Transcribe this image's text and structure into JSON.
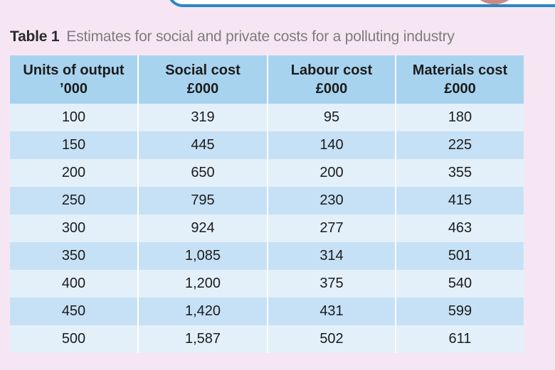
{
  "caption": {
    "label": "Table 1",
    "title": "Estimates for social and private costs for a polluting industry"
  },
  "columns": [
    {
      "line1": "Units of output",
      "line2": "’000"
    },
    {
      "line1": "Social cost",
      "line2": "£000"
    },
    {
      "line1": "Labour cost",
      "line2": "£000"
    },
    {
      "line1": "Materials cost",
      "line2": "£000"
    }
  ],
  "rows": [
    [
      "100",
      "319",
      "95",
      "180"
    ],
    [
      "150",
      "445",
      "140",
      "225"
    ],
    [
      "200",
      "650",
      "200",
      "355"
    ],
    [
      "250",
      "795",
      "230",
      "415"
    ],
    [
      "300",
      "924",
      "277",
      "463"
    ],
    [
      "350",
      "1,085",
      "314",
      "501"
    ],
    [
      "400",
      "1,200",
      "375",
      "540"
    ],
    [
      "450",
      "1,420",
      "431",
      "599"
    ],
    [
      "500",
      "1,587",
      "502",
      "611"
    ]
  ],
  "colors": {
    "background": "#f6e6f3",
    "header": "#a8d3ef",
    "row_light": "#e3f0fa",
    "row_dark": "#c6e1f5",
    "accent_border": "#2a86c6"
  }
}
